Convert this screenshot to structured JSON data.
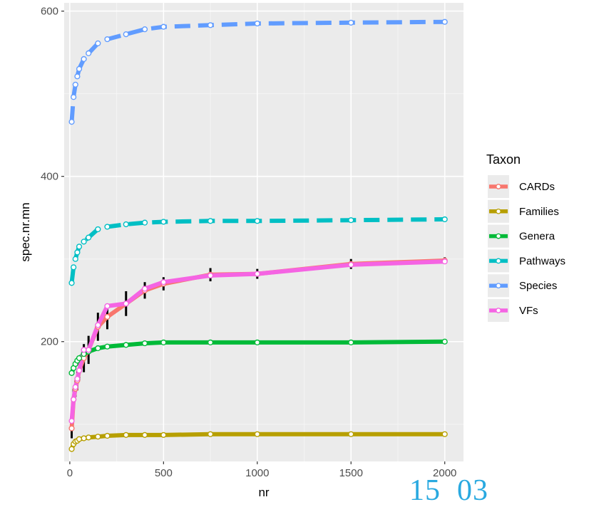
{
  "chart_data": {
    "type": "line",
    "title": "",
    "xlabel": "nr",
    "ylabel": "spec.nr.mn",
    "xlim": [
      -30,
      2100
    ],
    "ylim": [
      55,
      610
    ],
    "x_ticks": [
      0,
      500,
      1000,
      1500,
      2000
    ],
    "x_tick_labels": [
      "0",
      "500",
      "1000",
      "1500",
      "2000"
    ],
    "y_ticks": [
      200,
      400,
      600
    ],
    "y_tick_labels": [
      "200",
      "400",
      "600"
    ],
    "grid": true,
    "legend": {
      "title": "Taxon",
      "position": "right"
    },
    "series": [
      {
        "name": "CARDs",
        "color": "#f8766d",
        "dash": "solid",
        "x": [
          10,
          20,
          30,
          40,
          50,
          75,
          100,
          150,
          200,
          300,
          400,
          500,
          750,
          1000,
          1500,
          2000
        ],
        "y": [
          95,
          130,
          143,
          153,
          165,
          180,
          190,
          218,
          230,
          246,
          262,
          270,
          281,
          282,
          294,
          298
        ],
        "err": [
          12,
          13,
          10,
          12,
          12,
          17,
          17,
          17,
          15,
          15,
          10,
          8,
          8,
          6,
          6,
          4
        ]
      },
      {
        "name": "Families",
        "color": "#b79f00",
        "dash": "solid",
        "x": [
          10,
          20,
          30,
          40,
          50,
          75,
          100,
          150,
          200,
          300,
          400,
          500,
          750,
          1000,
          1500,
          2000
        ],
        "y": [
          70,
          76,
          79,
          80,
          82,
          83,
          84,
          85,
          86,
          87,
          87,
          87,
          88,
          88,
          88,
          88
        ]
      },
      {
        "name": "Genera",
        "color": "#00ba38",
        "dash": "solid",
        "x": [
          10,
          20,
          30,
          40,
          50,
          75,
          100,
          150,
          200,
          300,
          400,
          500,
          750,
          1000,
          1500,
          2000
        ],
        "y": [
          162,
          168,
          173,
          177,
          180,
          185,
          188,
          192,
          194,
          196,
          198,
          199,
          199,
          199,
          199,
          200
        ]
      },
      {
        "name": "Pathways",
        "color": "#00bfc4",
        "dash": "dashed",
        "x": [
          10,
          20,
          30,
          40,
          50,
          75,
          100,
          150,
          200,
          300,
          400,
          500,
          750,
          1000,
          1500,
          2000
        ],
        "y": [
          271,
          290,
          300,
          308,
          315,
          321,
          326,
          336,
          339,
          342,
          344,
          345,
          346,
          346,
          347,
          348
        ]
      },
      {
        "name": "Species",
        "color": "#619cff",
        "dash": "dashed",
        "x": [
          10,
          20,
          30,
          40,
          50,
          75,
          100,
          150,
          200,
          300,
          400,
          500,
          750,
          1000,
          1500,
          2000
        ],
        "y": [
          466,
          496,
          511,
          521,
          530,
          542,
          549,
          561,
          566,
          572,
          578,
          581,
          583,
          585,
          586,
          587
        ]
      },
      {
        "name": "VFs",
        "color": "#f564e3",
        "dash": "solid",
        "x": [
          10,
          20,
          30,
          40,
          50,
          75,
          100,
          150,
          200,
          300,
          400,
          500,
          750,
          1000,
          1500,
          2000
        ],
        "y": [
          104,
          130,
          145,
          155,
          165,
          190,
          190,
          220,
          243,
          246,
          264,
          272,
          280,
          282,
          293,
          297
        ]
      }
    ]
  },
  "overlay": {
    "text": "15  03"
  }
}
